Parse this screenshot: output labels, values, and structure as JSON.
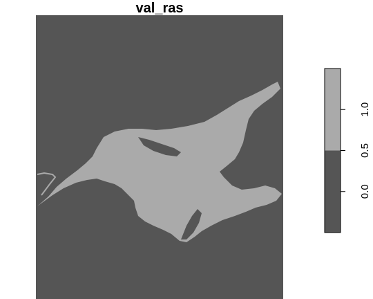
{
  "chart_data": {
    "type": "heatmap",
    "title": "val_ras",
    "xlabel": "",
    "ylabel": "",
    "colors": {
      "low": "#555555",
      "high": "#aaaaaa",
      "outline": "#000000"
    },
    "legend": {
      "placement": "right",
      "range": [
        -0.5,
        1.5
      ],
      "break": 0.5,
      "ticks": [
        0.0,
        0.5,
        1.0
      ],
      "tick_labels": [
        "0.0",
        "0.5",
        "1.0"
      ]
    },
    "grid": false
  }
}
